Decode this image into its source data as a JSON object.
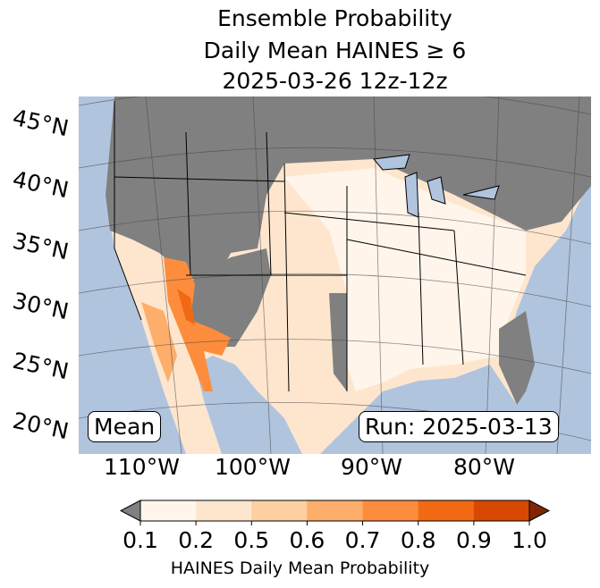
{
  "title": {
    "line1": "Ensemble Probability",
    "line2": "Daily Mean HAINES ≥ 6",
    "line3": "2025-03-26 12z-12z"
  },
  "latitudes": [
    "45°N",
    "40°N",
    "35°N",
    "30°N",
    "25°N",
    "20°N"
  ],
  "longitudes": [
    "110°W",
    "100°W",
    "90°W",
    "80°W"
  ],
  "labels": {
    "mean": "Mean",
    "run": "Run: 2025-03-13"
  },
  "colorbar": {
    "ticks": [
      "0.1",
      "0.2",
      "0.5",
      "0.6",
      "0.7",
      "0.8",
      "0.9",
      "1.0"
    ],
    "colors": [
      "#fff5eb",
      "#fee6ce",
      "#fdd0a2",
      "#fdae6b",
      "#fd8d3c",
      "#f16913",
      "#d94801"
    ],
    "under_color": "#808080",
    "over_color": "#7f2704",
    "label": "HAINES Daily Mean Probability"
  },
  "map_colors": {
    "ocean": "#b0c4de",
    "masked": "#808080"
  }
}
